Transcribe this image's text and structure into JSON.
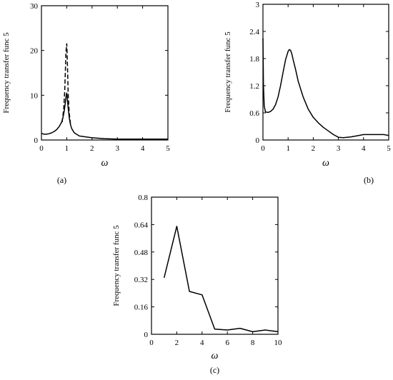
{
  "chart_data": [
    {
      "type": "line",
      "panel_label": "(a)",
      "xlabel": "ω",
      "ylabel": "Frequency transfer func 5",
      "xlim": [
        0,
        5
      ],
      "ylim": [
        0,
        30
      ],
      "xticks": [
        "0",
        "1",
        "2",
        "3",
        "4",
        "5"
      ],
      "yticks": [
        "0",
        "10",
        "20",
        "30"
      ],
      "grid": false,
      "series": [
        {
          "style": "solid",
          "x": [
            0,
            0.1,
            0.2,
            0.3,
            0.4,
            0.5,
            0.6,
            0.7,
            0.8,
            0.85,
            0.9,
            0.95,
            0.98,
            1.0,
            1.02,
            1.05,
            1.1,
            1.15,
            1.2,
            1.3,
            1.5,
            2,
            2.5,
            3,
            3.5,
            4,
            4.5,
            5
          ],
          "y": [
            1.5,
            1.3,
            1.3,
            1.4,
            1.6,
            1.9,
            2.3,
            3.0,
            4.0,
            5.0,
            6.5,
            8.5,
            10,
            10.5,
            9.5,
            7.5,
            5.0,
            3.4,
            2.5,
            1.6,
            0.9,
            0.5,
            0.3,
            0.2,
            0.2,
            0.2,
            0.2,
            0.2
          ]
        },
        {
          "style": "dashed",
          "x": [
            0.82,
            0.88,
            0.92,
            0.95,
            0.97,
            0.99,
            1.0,
            1.01,
            1.03,
            1.06,
            1.1,
            1.15
          ],
          "y": [
            4,
            7,
            11,
            16,
            19.5,
            21,
            21.5,
            20,
            16,
            10,
            6,
            3.5
          ]
        }
      ]
    },
    {
      "type": "line",
      "panel_label": "(b)",
      "xlabel": "ω",
      "ylabel": "Frequency transfer func 5",
      "xlim": [
        0,
        5
      ],
      "ylim": [
        0,
        3
      ],
      "xticks": [
        "0",
        "1",
        "2",
        "3",
        "4",
        "5"
      ],
      "yticks": [
        "0",
        "0.6",
        "1.2",
        "1.8",
        "2.4",
        "3"
      ],
      "grid": false,
      "series": [
        {
          "style": "solid",
          "x": [
            0.0,
            0.02,
            0.05,
            0.1,
            0.2,
            0.3,
            0.4,
            0.5,
            0.6,
            0.7,
            0.8,
            0.9,
            1.0,
            1.05,
            1.1,
            1.15,
            1.2,
            1.3,
            1.4,
            1.6,
            1.8,
            2.0,
            2.2,
            2.4,
            2.6,
            2.8,
            3.0,
            3.2,
            3.5,
            3.8,
            4.0,
            4.5,
            4.8,
            5.0
          ],
          "y": [
            2.25,
            1.2,
            0.75,
            0.62,
            0.61,
            0.63,
            0.68,
            0.78,
            0.95,
            1.2,
            1.5,
            1.78,
            1.96,
            2.0,
            1.98,
            1.9,
            1.78,
            1.55,
            1.3,
            0.95,
            0.68,
            0.5,
            0.38,
            0.28,
            0.2,
            0.12,
            0.06,
            0.05,
            0.07,
            0.1,
            0.12,
            0.12,
            0.12,
            0.1
          ]
        }
      ]
    },
    {
      "type": "line",
      "panel_label": "(c)",
      "xlabel": "ω",
      "ylabel": "Frequency transfer func 5",
      "xlim": [
        0,
        10
      ],
      "ylim": [
        0,
        0.8
      ],
      "xticks": [
        "0",
        "2",
        "4",
        "6",
        "8",
        "10"
      ],
      "yticks": [
        "0",
        "0.16",
        "0.32",
        "0.48",
        "0.64",
        "0.8"
      ],
      "grid": false,
      "series": [
        {
          "style": "solid",
          "x": [
            1,
            2,
            3,
            4,
            5,
            6,
            7,
            8,
            9,
            10
          ],
          "y": [
            0.33,
            0.63,
            0.25,
            0.23,
            0.03,
            0.025,
            0.035,
            0.015,
            0.025,
            0.015
          ]
        }
      ]
    }
  ]
}
